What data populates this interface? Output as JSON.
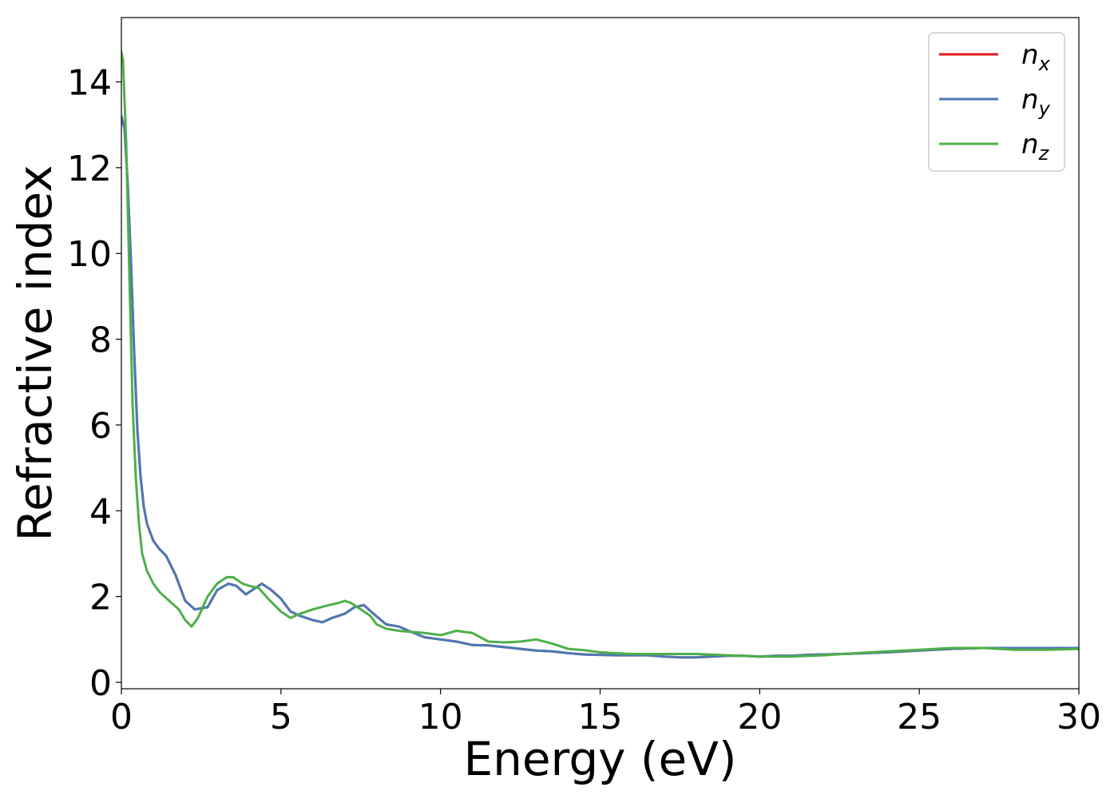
{
  "chart_data": {
    "type": "line",
    "xlabel": "Energy (eV)",
    "ylabel": "Refractive index",
    "xlim": [
      0,
      30
    ],
    "ylim": [
      -0.15,
      15.5
    ],
    "xticks": [
      0,
      5,
      10,
      15,
      20,
      25,
      30
    ],
    "yticks": [
      0,
      2,
      4,
      6,
      8,
      10,
      12,
      14
    ],
    "grid": false,
    "legend_position": "top-right",
    "series": [
      {
        "name": "n_x",
        "label_base": "n",
        "label_sub": "x",
        "color": "#e41a1c",
        "x": [
          0,
          0.1,
          0.2,
          0.3,
          0.4,
          0.5,
          0.6,
          0.7,
          0.8,
          1.0,
          1.2,
          1.4,
          1.7,
          2.0,
          2.3,
          2.7,
          3.0,
          3.35,
          3.6,
          3.9,
          4.1,
          4.4,
          4.7,
          5.0,
          5.3,
          5.6,
          6.0,
          6.3,
          6.6,
          7.0,
          7.3,
          7.6,
          7.9,
          8.3,
          8.7,
          9.0,
          9.5,
          10.0,
          10.5,
          11.0,
          11.5,
          12.0,
          12.5,
          13.0,
          13.5,
          14.0,
          14.5,
          15.0,
          15.5,
          16.0,
          16.5,
          17.0,
          17.5,
          18.0,
          18.5,
          19.0,
          19.5,
          20.0,
          20.5,
          21.0,
          21.5,
          22.0,
          23.0,
          24.0,
          25.0,
          26.0,
          27.0,
          28.0,
          29.0,
          30.0
        ],
        "y": [
          13.2,
          12.9,
          11.6,
          9.8,
          7.7,
          5.9,
          4.8,
          4.1,
          3.7,
          3.3,
          3.1,
          2.95,
          2.5,
          1.9,
          1.7,
          1.75,
          2.15,
          2.3,
          2.25,
          2.05,
          2.15,
          2.3,
          2.15,
          1.95,
          1.65,
          1.55,
          1.45,
          1.4,
          1.5,
          1.6,
          1.75,
          1.8,
          1.6,
          1.35,
          1.3,
          1.2,
          1.05,
          1.0,
          0.95,
          0.87,
          0.86,
          0.82,
          0.78,
          0.74,
          0.72,
          0.68,
          0.65,
          0.64,
          0.63,
          0.63,
          0.63,
          0.6,
          0.58,
          0.58,
          0.6,
          0.62,
          0.62,
          0.6,
          0.62,
          0.62,
          0.64,
          0.65,
          0.67,
          0.7,
          0.74,
          0.78,
          0.8,
          0.8,
          0.8,
          0.8
        ]
      },
      {
        "name": "n_y",
        "label_base": "n",
        "label_sub": "y",
        "color": "#4b79b5",
        "x": [
          0,
          0.1,
          0.2,
          0.3,
          0.4,
          0.5,
          0.6,
          0.7,
          0.8,
          1.0,
          1.2,
          1.4,
          1.7,
          2.0,
          2.3,
          2.7,
          3.0,
          3.35,
          3.6,
          3.9,
          4.1,
          4.4,
          4.7,
          5.0,
          5.3,
          5.6,
          6.0,
          6.3,
          6.6,
          7.0,
          7.3,
          7.6,
          7.9,
          8.3,
          8.7,
          9.0,
          9.5,
          10.0,
          10.5,
          11.0,
          11.5,
          12.0,
          12.5,
          13.0,
          13.5,
          14.0,
          14.5,
          15.0,
          15.5,
          16.0,
          16.5,
          17.0,
          17.5,
          18.0,
          18.5,
          19.0,
          19.5,
          20.0,
          20.5,
          21.0,
          21.5,
          22.0,
          23.0,
          24.0,
          25.0,
          26.0,
          27.0,
          28.0,
          29.0,
          30.0
        ],
        "y": [
          13.2,
          12.9,
          11.6,
          9.8,
          7.7,
          5.9,
          4.8,
          4.1,
          3.7,
          3.3,
          3.1,
          2.95,
          2.5,
          1.9,
          1.7,
          1.75,
          2.15,
          2.3,
          2.25,
          2.05,
          2.15,
          2.3,
          2.15,
          1.95,
          1.65,
          1.55,
          1.45,
          1.4,
          1.5,
          1.6,
          1.75,
          1.8,
          1.6,
          1.35,
          1.3,
          1.2,
          1.05,
          1.0,
          0.95,
          0.87,
          0.86,
          0.82,
          0.78,
          0.74,
          0.72,
          0.68,
          0.65,
          0.64,
          0.63,
          0.63,
          0.63,
          0.6,
          0.58,
          0.58,
          0.6,
          0.62,
          0.62,
          0.6,
          0.62,
          0.62,
          0.64,
          0.65,
          0.67,
          0.7,
          0.74,
          0.78,
          0.8,
          0.8,
          0.8,
          0.8
        ]
      },
      {
        "name": "n_z",
        "label_base": "n",
        "label_sub": "z",
        "color": "#4daf4a",
        "x": [
          0,
          0.05,
          0.15,
          0.25,
          0.35,
          0.45,
          0.55,
          0.65,
          0.8,
          1.0,
          1.2,
          1.5,
          1.8,
          2.0,
          2.2,
          2.4,
          2.7,
          3.0,
          3.3,
          3.5,
          3.8,
          4.0,
          4.3,
          4.6,
          5.0,
          5.3,
          5.6,
          6.0,
          6.5,
          6.8,
          7.0,
          7.2,
          7.5,
          7.8,
          8.0,
          8.3,
          8.7,
          9.0,
          9.5,
          10.0,
          10.5,
          11.0,
          11.5,
          12.0,
          12.5,
          13.0,
          13.5,
          14.0,
          14.5,
          15.0,
          15.5,
          16.0,
          17.0,
          18.0,
          19.0,
          20.0,
          21.0,
          22.0,
          23.0,
          24.0,
          25.0,
          26.0,
          27.0,
          28.0,
          29.0,
          30.0
        ],
        "y": [
          14.7,
          14.5,
          12.6,
          9.5,
          6.5,
          4.8,
          3.7,
          3.0,
          2.6,
          2.3,
          2.1,
          1.9,
          1.7,
          1.45,
          1.3,
          1.5,
          2.0,
          2.3,
          2.45,
          2.45,
          2.3,
          2.25,
          2.2,
          1.95,
          1.65,
          1.5,
          1.6,
          1.7,
          1.8,
          1.85,
          1.9,
          1.85,
          1.7,
          1.55,
          1.35,
          1.25,
          1.2,
          1.18,
          1.15,
          1.1,
          1.2,
          1.15,
          0.95,
          0.93,
          0.95,
          1.0,
          0.9,
          0.78,
          0.75,
          0.7,
          0.68,
          0.66,
          0.66,
          0.66,
          0.63,
          0.6,
          0.6,
          0.63,
          0.68,
          0.72,
          0.76,
          0.8,
          0.8,
          0.76,
          0.76,
          0.78
        ]
      }
    ]
  }
}
